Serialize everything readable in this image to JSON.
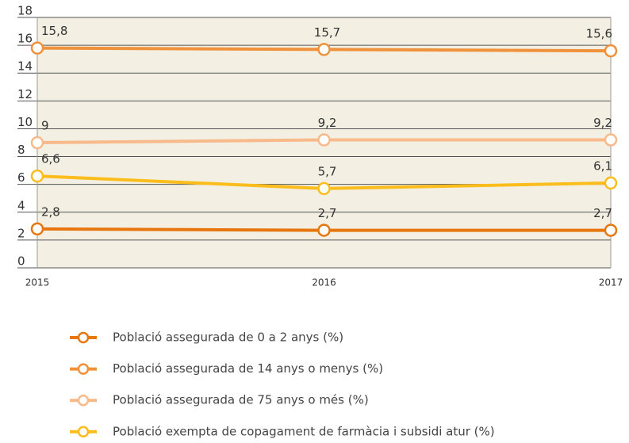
{
  "chart_data": {
    "type": "line",
    "categories": [
      "2015",
      "2016",
      "2017"
    ],
    "series": [
      {
        "name": "Població assegurada de 0 a 2 anys (%)",
        "color": "#e8760f",
        "values": [
          2.8,
          2.7,
          2.7
        ],
        "value_labels": [
          "2,8",
          "2,7",
          "2,7"
        ]
      },
      {
        "name": "Població assegurada de 14 anys o menys (%)",
        "color": "#f0913b",
        "values": [
          15.8,
          15.7,
          15.6
        ],
        "value_labels": [
          "15,8",
          "15,7",
          "15,6"
        ]
      },
      {
        "name": "Població assegurada de 75 anys o més (%)",
        "color": "#f8b98b",
        "values": [
          9,
          9.2,
          9.2
        ],
        "value_labels": [
          "9",
          "9,2",
          "9,2"
        ]
      },
      {
        "name": "Població exempta de copagament de farmàcia i subsidi atur (%)",
        "color": "#fbbd1c",
        "values": [
          6.6,
          5.7,
          6.1
        ],
        "value_labels": [
          "6,6",
          "5,7",
          "6,1"
        ]
      }
    ],
    "ylim": [
      0,
      18
    ],
    "yticks": [
      0,
      2,
      4,
      6,
      8,
      10,
      12,
      14,
      16,
      18
    ],
    "grid": true
  }
}
